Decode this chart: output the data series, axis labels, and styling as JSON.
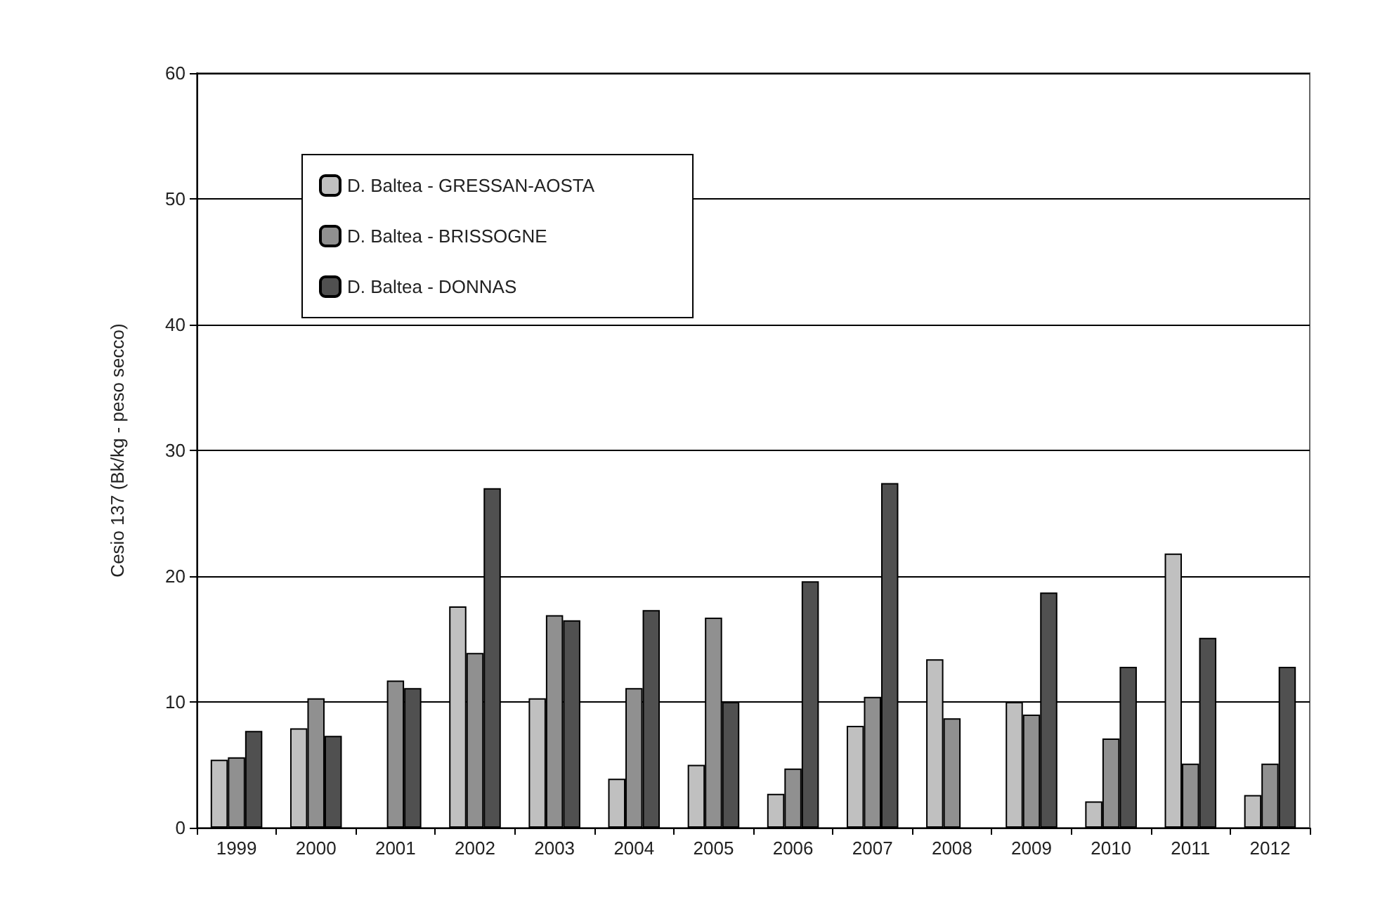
{
  "chart_data": {
    "type": "bar",
    "ylabel": "Cesio 137 (Bk/kg - peso secco)",
    "categories": [
      "1999",
      "2000",
      "2001",
      "2002",
      "2003",
      "2004",
      "2005",
      "2006",
      "2007",
      "2008",
      "2009",
      "2010",
      "2011",
      "2012"
    ],
    "series": [
      {
        "name": "D. Baltea - GRESSAN-AOSTA",
        "color": "#c0c0c0",
        "values": [
          5.4,
          7.9,
          null,
          17.6,
          10.3,
          3.9,
          5.0,
          2.7,
          8.1,
          13.4,
          10.0,
          2.1,
          21.8,
          2.6
        ]
      },
      {
        "name": "D. Baltea - BRISSOGNE",
        "color": "#909090",
        "values": [
          5.6,
          10.3,
          11.7,
          13.9,
          16.9,
          11.1,
          16.7,
          4.7,
          10.4,
          8.7,
          9.0,
          7.1,
          5.1,
          5.1
        ]
      },
      {
        "name": "D. Baltea - DONNAS",
        "color": "#505050",
        "values": [
          7.7,
          7.3,
          11.1,
          27.0,
          16.5,
          17.3,
          10.0,
          19.6,
          27.4,
          null,
          18.7,
          12.8,
          15.1,
          12.8
        ]
      }
    ],
    "ylim": [
      0,
      60
    ],
    "yticks": [
      0,
      10,
      20,
      30,
      40,
      50,
      60
    ],
    "grid": "y",
    "legend": "top left"
  }
}
